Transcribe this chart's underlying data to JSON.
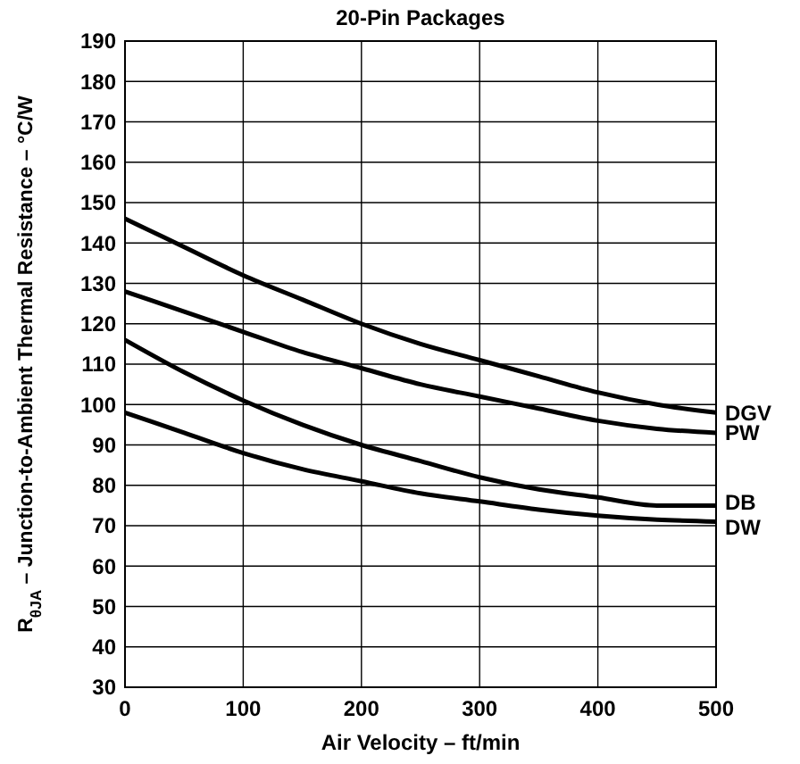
{
  "chart_data": {
    "type": "line",
    "title": "20-Pin Packages",
    "xlabel": "Air Velocity – ft/min",
    "ylabel": "R$_{θJA}$ – Junction-to-Ambient Thermal Resistance – °C/W",
    "x": [
      0,
      50,
      100,
      150,
      200,
      250,
      300,
      350,
      400,
      450,
      500
    ],
    "series": [
      {
        "name": "DGV",
        "color": "#000000",
        "values": [
          146,
          139,
          132,
          126,
          120,
          115,
          111,
          107,
          103,
          100,
          98
        ]
      },
      {
        "name": "PW",
        "color": "#000000",
        "values": [
          128,
          123,
          118,
          113,
          109,
          105,
          102,
          99,
          96,
          94,
          93
        ]
      },
      {
        "name": "DB",
        "color": "#000000",
        "values": [
          116,
          108,
          101,
          95,
          90,
          86,
          82,
          79,
          77,
          75,
          75
        ]
      },
      {
        "name": "DW",
        "color": "#000000",
        "values": [
          98,
          93,
          88,
          84,
          81,
          78,
          76,
          74,
          72.5,
          71.5,
          71
        ]
      }
    ],
    "xlim": [
      0,
      500
    ],
    "xticks": [
      0,
      100,
      200,
      300,
      400,
      500
    ],
    "ylim": [
      30,
      190
    ],
    "yticks": [
      30,
      40,
      50,
      60,
      70,
      80,
      90,
      100,
      110,
      120,
      130,
      140,
      150,
      160,
      170,
      180,
      190
    ],
    "grid": true,
    "marker": "none",
    "line_style": "solid"
  }
}
